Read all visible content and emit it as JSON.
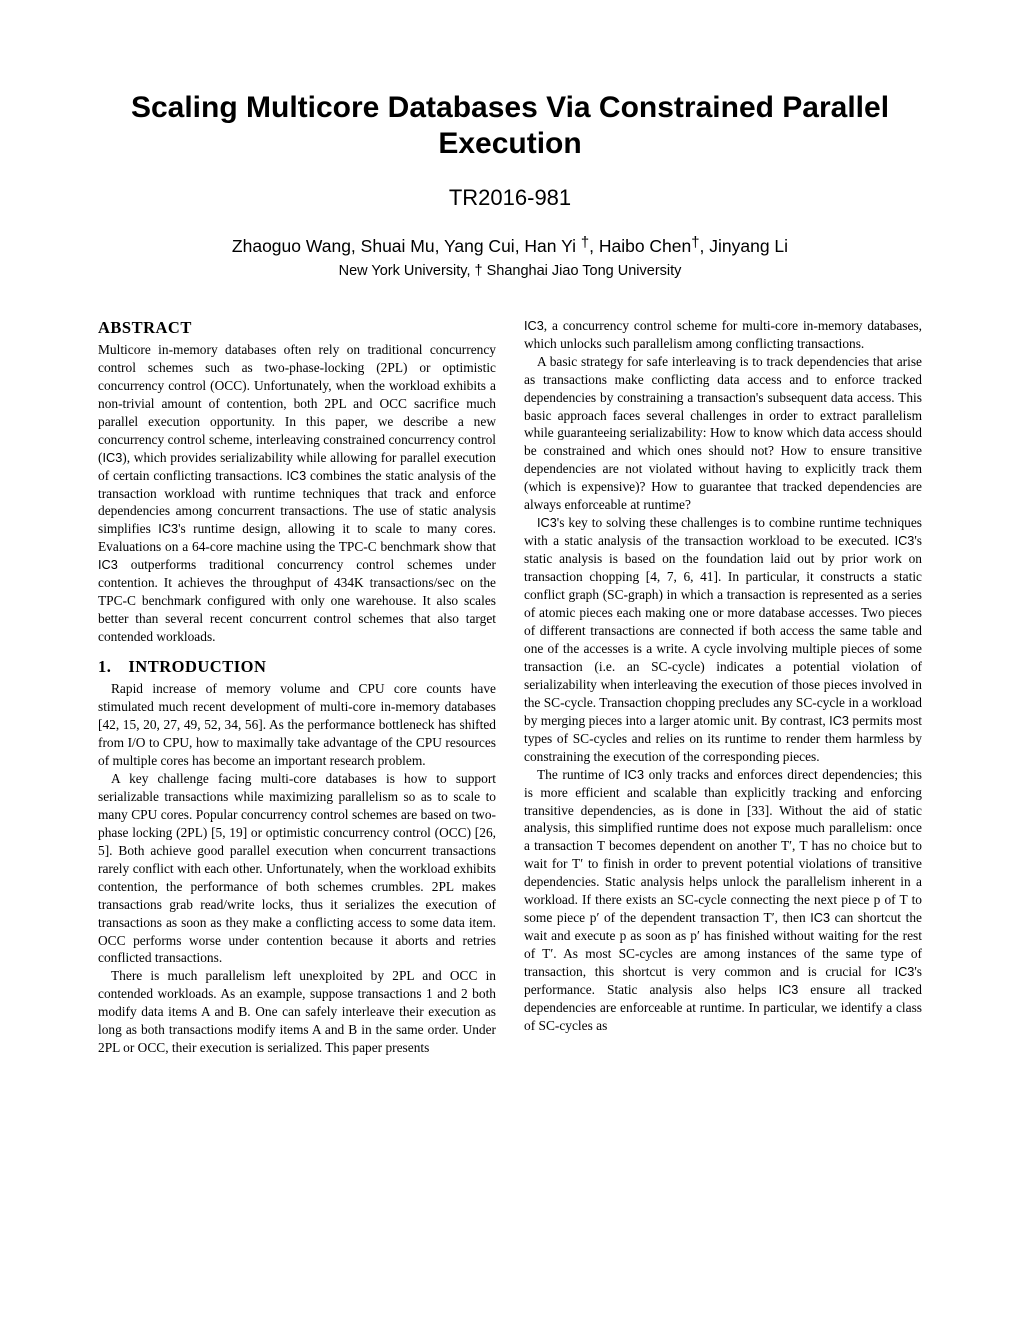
{
  "title": "Scaling Multicore Databases Via Constrained Parallel Execution",
  "report_number": "TR2016-981",
  "authors_prefix": "Zhaoguo Wang, Shuai Mu, Yang Cui, Han Yi ",
  "authors_mid1": ", Haibo Chen",
  "authors_suffix": ", Jinyang Li",
  "affiliation": "New York University, † Shanghai Jiao Tong University",
  "dagger": "†",
  "abstract_heading": "ABSTRACT",
  "intro_heading": "1. INTRODUCTION",
  "left_col": {
    "abstract_p1_a": "Multicore in-memory databases often rely on traditional concurrency control schemes such as two-phase-locking (2PL) or optimistic concurrency control (OCC). Unfortunately, when the workload exhibits a non-trivial amount of contention, both 2PL and OCC sacrifice much parallel execution opportunity. In this paper, we describe a new concurrency control scheme, interleaving constrained concurrency control (",
    "abstract_p1_b": "), which provides serializability while allowing for parallel execution of certain conflicting transactions. ",
    "abstract_p1_c": " combines the static analysis of the transaction workload with runtime techniques that track and enforce dependencies among concurrent transactions. The use of static analysis simplifies ",
    "abstract_p1_d": "'s runtime design, allowing it to scale to many cores. Evaluations on a 64-core machine using the TPC-C benchmark show that ",
    "abstract_p1_e": " outperforms traditional concurrency control schemes under contention. It achieves the throughput of 434K transactions/sec on the TPC-C benchmark configured with only one warehouse. It also scales better than several recent concurrent control schemes that also target contended workloads.",
    "intro_p1": "Rapid increase of memory volume and CPU core counts have stimulated much recent development of multi-core in-memory databases [42, 15, 20, 27, 49, 52, 34, 56]. As the performance bottleneck has shifted from I/O to CPU, how to maximally take advantage of the CPU resources of multiple cores has become an important research problem.",
    "intro_p2": "A key challenge facing multi-core databases is how to support serializable transactions while maximizing parallelism so as to scale to many CPU cores. Popular concurrency control schemes are based on two-phase locking (2PL) [5, 19] or optimistic concurrency control (OCC) [26, 5]. Both achieve good parallel execution when concurrent transactions rarely conflict with each other. Unfortunately, when the workload exhibits contention, the performance of both schemes crumbles. 2PL makes transactions grab read/write locks, thus it serializes the execution of transactions as soon as they make a conflicting access to some data item. OCC performs worse under contention because it aborts and retries conflicted transactions.",
    "intro_p3": "There is much parallelism left unexploited by 2PL and OCC in contended workloads. As an example, suppose transactions 1 and 2 both modify data items A and B. One can safely interleave their execution as long as both transactions modify items A and B in the same order. Under 2PL or OCC, their execution is serialized. This paper presents"
  },
  "right_col": {
    "r_p1_a": ", a concurrency control scheme for multi-core in-memory databases, which unlocks such parallelism among conflicting transactions.",
    "r_p2": "A basic strategy for safe interleaving is to track dependencies that arise as transactions make conflicting data access and to enforce tracked dependencies by constraining a transaction's subsequent data access. This basic approach faces several challenges in order to extract parallelism while guaranteeing serializability: How to know which data access should be constrained and which ones should not? How to ensure transitive dependencies are not violated without having to explicitly track them (which is expensive)? How to guarantee that tracked dependencies are always enforceable at runtime?",
    "r_p3_a": "'s key to solving these challenges is to combine runtime techniques with a static analysis of the transaction workload to be executed. ",
    "r_p3_b": "'s static analysis is based on the foundation laid out by prior work on transaction chopping [4, 7, 6, 41]. In particular, it constructs a static conflict graph (SC-graph) in which a transaction is represented as a series of atomic pieces each making one or more database accesses. Two pieces of different transactions are connected if both access the same table and one of the accesses is a write. A cycle involving multiple pieces of some transaction (i.e. an SC-cycle) indicates a potential violation of serializability when interleaving the execution of those pieces involved in the SC-cycle. Transaction chopping precludes any SC-cycle in a workload by merging pieces into a larger atomic unit. By contrast, ",
    "r_p3_c": " permits most types of SC-cycles and relies on its runtime to render them harmless by constraining the execution of the corresponding pieces.",
    "r_p4_a": "The runtime of ",
    "r_p4_b": " only tracks and enforces direct dependencies; this is more efficient and scalable than explicitly tracking and enforcing transitive dependencies, as is done in [33]. Without the aid of static analysis, this simplified runtime does not expose much parallelism: once a transaction T becomes dependent on another T′, T has no choice but to wait for T′ to finish in order to prevent potential violations of transitive dependencies. Static analysis helps unlock the parallelism inherent in a workload. If there exists an SC-cycle connecting the next piece p of T to some piece p′ of the dependent transaction T′, then ",
    "r_p4_c": " can shortcut the wait and execute p as soon as p′ has finished without waiting for the rest of T′. As most SC-cycles are among instances of the same type of transaction, this shortcut is very common and is crucial for ",
    "r_p4_d": "'s performance. Static analysis also helps ",
    "r_p4_e": " ensure all tracked dependencies are enforceable at runtime. In particular, we identify a class of SC-cycles as"
  },
  "ic3": "IC3"
}
